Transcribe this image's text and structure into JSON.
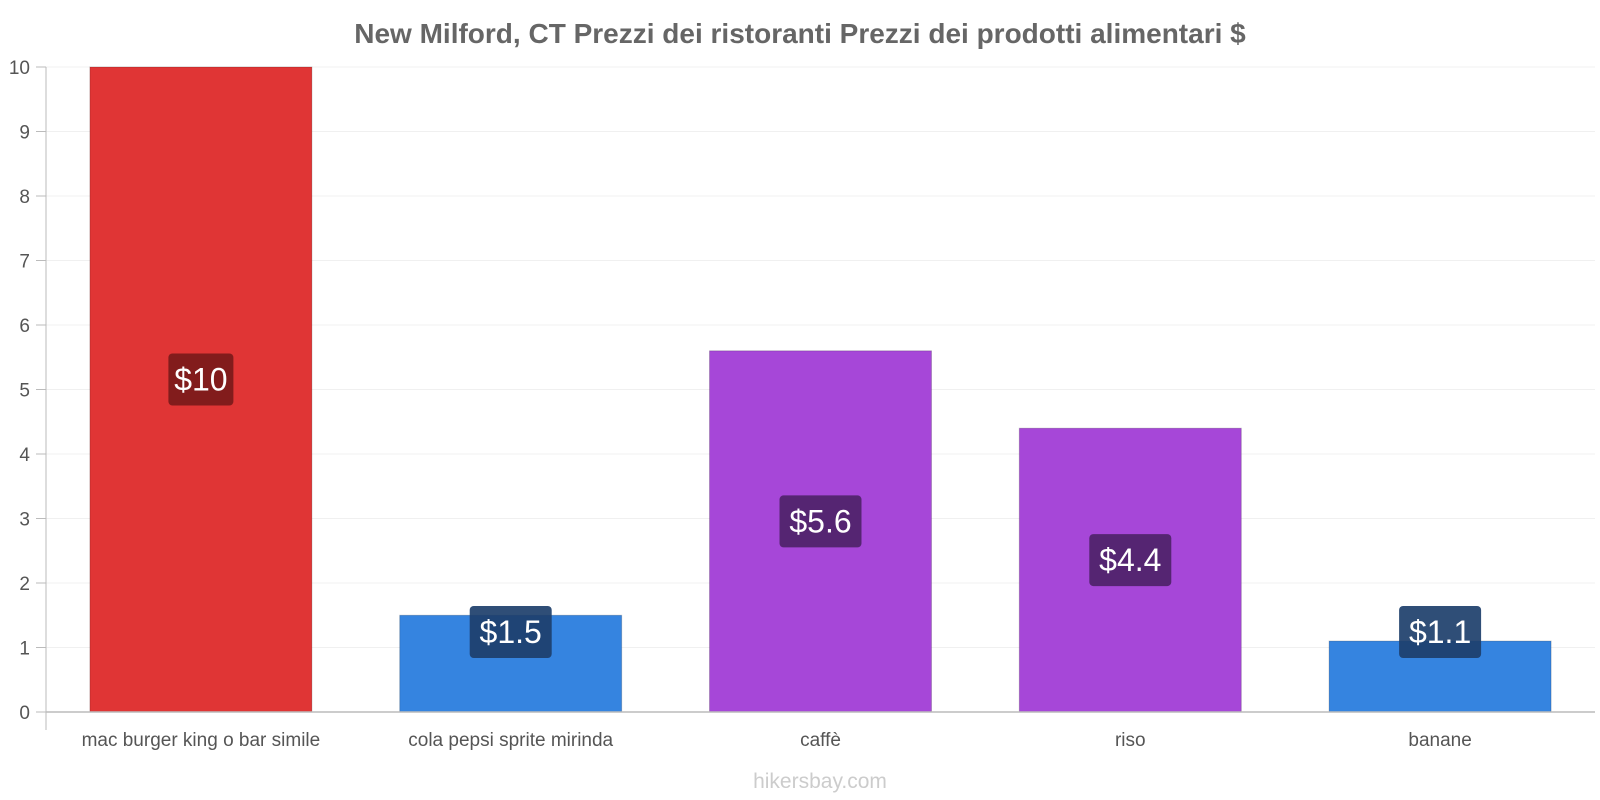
{
  "watermark": "hikersbay.com",
  "chart_data": {
    "type": "bar",
    "title": "New Milford, CT Prezzi dei ristoranti Prezzi dei prodotti alimentari $",
    "xlabel": "",
    "ylabel": "",
    "ylim": [
      0,
      10
    ],
    "yticks": [
      0,
      1,
      2,
      3,
      4,
      5,
      6,
      7,
      8,
      9,
      10
    ],
    "grid": true,
    "categories": [
      "mac burger king o bar simile",
      "cola pepsi sprite mirinda",
      "caffè",
      "riso",
      "banane"
    ],
    "values": [
      10,
      1.5,
      5.6,
      4.4,
      1.1
    ],
    "labels": [
      "$10",
      "$1.5",
      "$5.6",
      "$4.4",
      "$1.1"
    ],
    "colors": [
      "#e03535",
      "#3584e0",
      "#a647d8",
      "#a647d8",
      "#3584e0"
    ],
    "label_colors": [
      "#7a1a1a",
      "#1d3f6b",
      "#4e2369",
      "#4e2369",
      "#1d3f6b"
    ]
  }
}
